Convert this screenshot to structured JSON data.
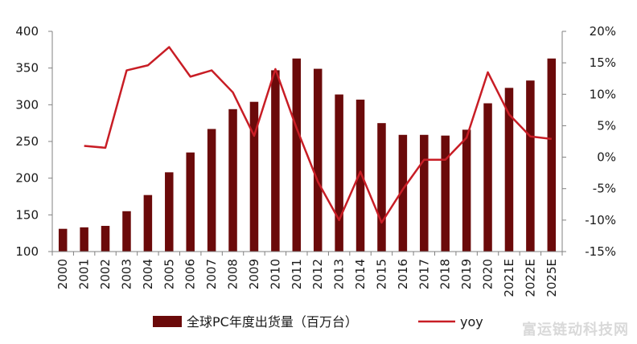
{
  "chart_data": {
    "type": "bar+line",
    "categories": [
      "2000",
      "2001",
      "2002",
      "2003",
      "2004",
      "2005",
      "2006",
      "2007",
      "2008",
      "2009",
      "2010",
      "2011",
      "2012",
      "2013",
      "2014",
      "2015",
      "2016",
      "2017",
      "2018",
      "2019",
      "2020",
      "2021E",
      "2022E",
      "2025E"
    ],
    "series": [
      {
        "name": "全球PC年度出货量（百万台）",
        "type": "bar",
        "axis": "left",
        "color": "#6b0a0a",
        "values": [
          131,
          133,
          135,
          155,
          177,
          208,
          235,
          267,
          294,
          304,
          347,
          363,
          349,
          314,
          307,
          275,
          259,
          259,
          258,
          266,
          302,
          323,
          333,
          363
        ]
      },
      {
        "name": "yoy",
        "type": "line",
        "axis": "right",
        "color": "#c81d25",
        "values": [
          null,
          1.8,
          1.5,
          13.8,
          14.6,
          17.5,
          12.8,
          13.8,
          10.3,
          3.4,
          14.0,
          4.6,
          -3.9,
          -10.0,
          -2.3,
          -10.4,
          -5.1,
          -0.4,
          -0.4,
          3.1,
          13.5,
          6.8,
          3.3,
          2.9
        ]
      }
    ],
    "left_axis": {
      "ylim": [
        100,
        400
      ],
      "ticks": [
        "100",
        "150",
        "200",
        "250",
        "300",
        "350",
        "400"
      ]
    },
    "right_axis": {
      "ylim": [
        -15,
        20
      ],
      "ticks": [
        "-15%",
        "-10%",
        "-5%",
        "0%",
        "5%",
        "10%",
        "15%",
        "20%"
      ]
    },
    "grid": false,
    "legend_position": "bottom"
  },
  "watermark": "富运链动科技网"
}
